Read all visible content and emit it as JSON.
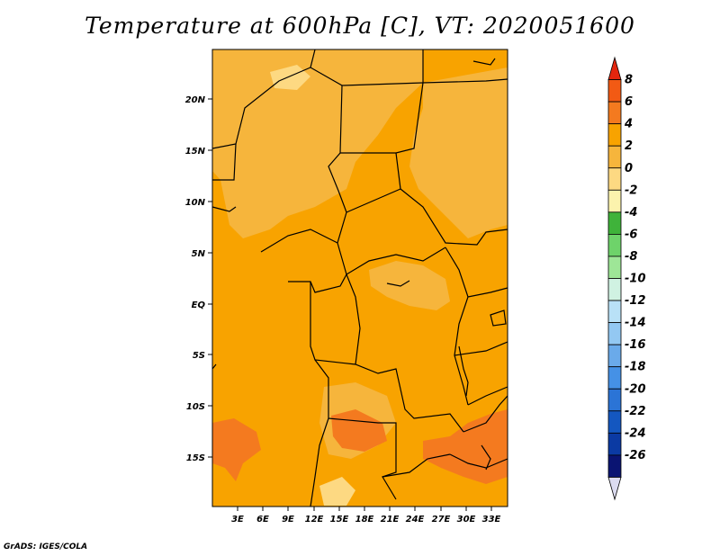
{
  "title": "Temperature at 600hPa [C], VT: 2020051600",
  "credit": "GrADS: IGES/COLA",
  "map": {
    "lat_ticks": [
      "20N",
      "15N",
      "10N",
      "5N",
      "EQ",
      "5S",
      "10S",
      "15S"
    ],
    "lon_ticks": [
      "3E",
      "6E",
      "9E",
      "12E",
      "15E",
      "18E",
      "21E",
      "24E",
      "27E",
      "30E",
      "33E"
    ],
    "dominant_range_C": "2 to 4",
    "colors": {
      "warm_2_4": "#f8a300",
      "mild_0_2": "#f6b53c",
      "cool_m2_0": "#fdd982",
      "hot_4_6": "#f47a1f",
      "border": "#000000"
    }
  },
  "colorbar": {
    "labels": [
      "8",
      "6",
      "4",
      "2",
      "0",
      "-2",
      "-4",
      "-6",
      "-8",
      "-10",
      "-12",
      "-14",
      "-16",
      "-18",
      "-20",
      "-22",
      "-24",
      "-26"
    ],
    "colors": [
      "#e3260e",
      "#f25a14",
      "#f47a1f",
      "#f8a300",
      "#f6b53c",
      "#fdd982",
      "#fcf3ad",
      "#3fb33a",
      "#6ed36a",
      "#9ee697",
      "#d0f2e2",
      "#b9e1f7",
      "#93c8f2",
      "#6aaaea",
      "#4591e6",
      "#2b74d6",
      "#1457c0",
      "#0b3aa3",
      "#0a1472",
      "#dcdcf0"
    ]
  }
}
